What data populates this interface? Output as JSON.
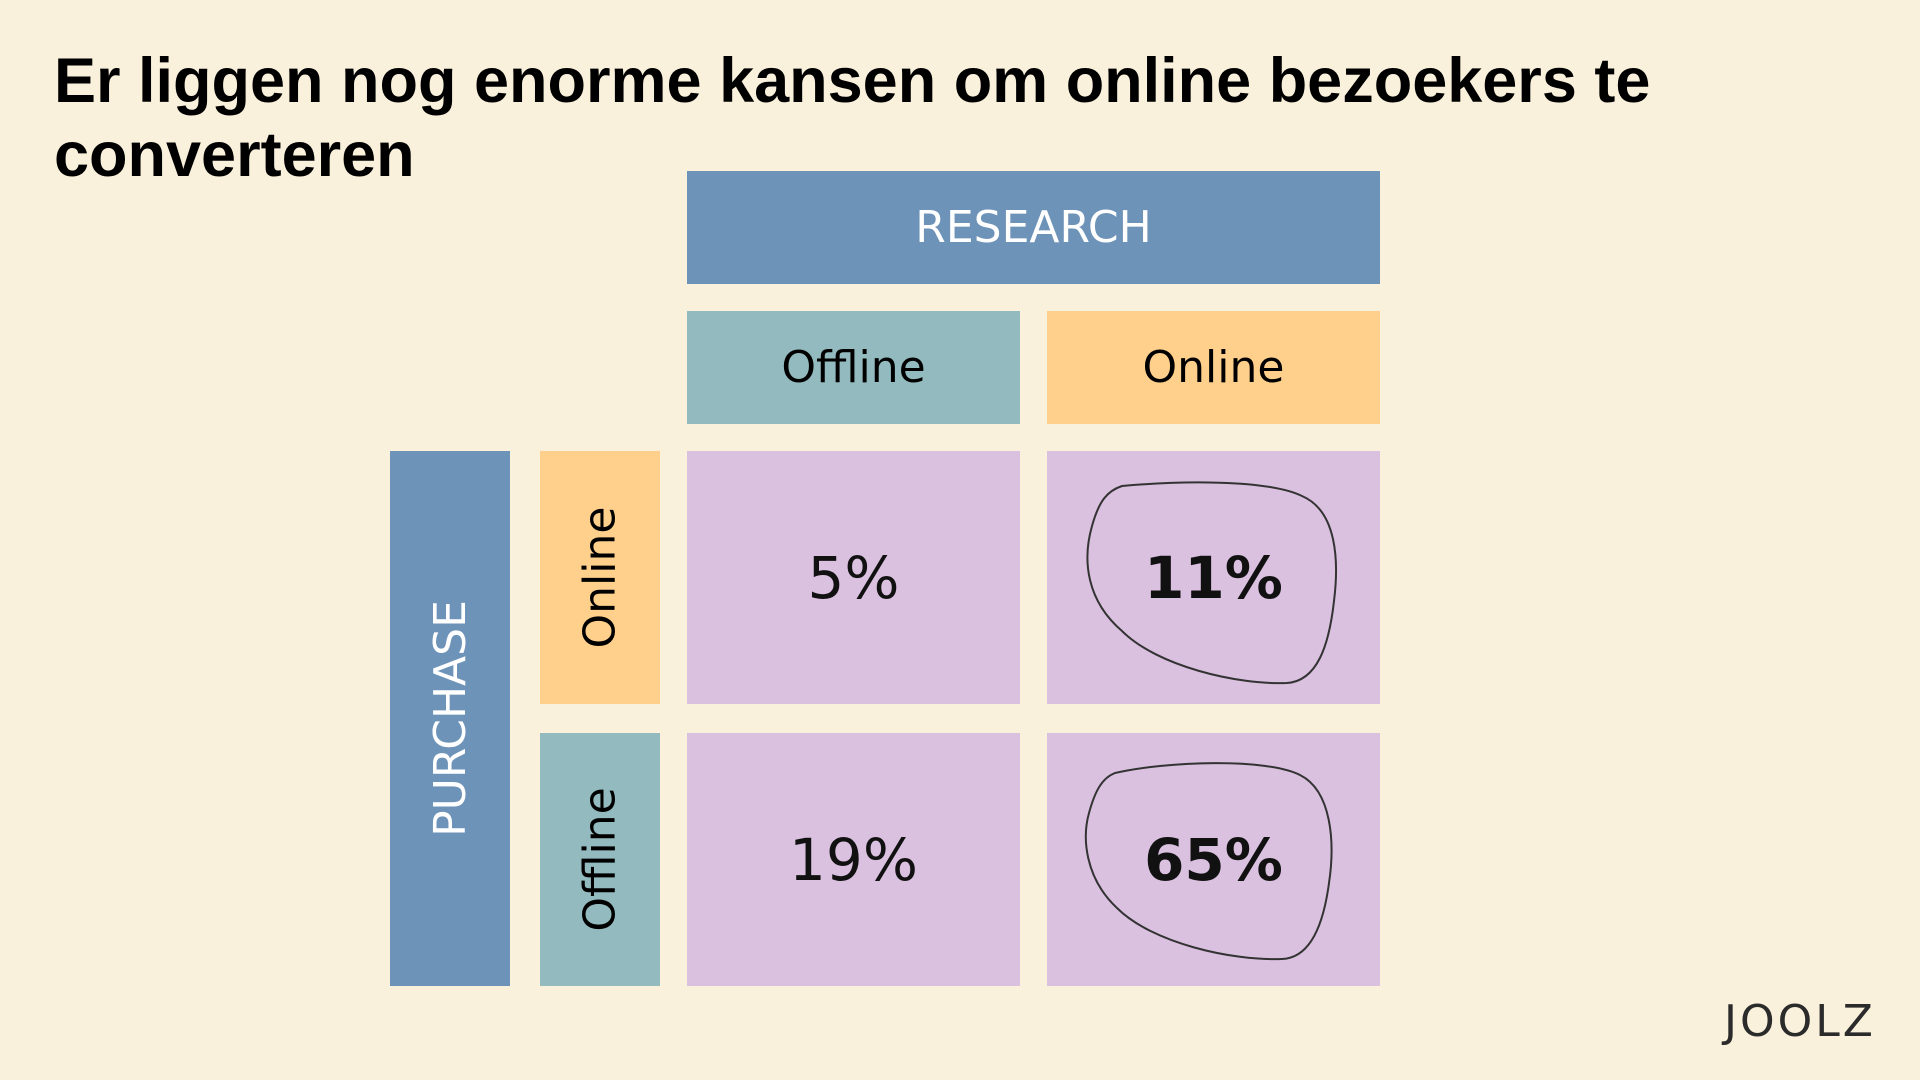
{
  "title": "Er liggen nog enorme kansen om online bezoekers te converteren",
  "matrix": {
    "column_group": "RESEARCH",
    "columns": [
      "Offline",
      "Online"
    ],
    "row_group": "PURCHASE",
    "rows": [
      "Online",
      "Offline"
    ],
    "cells": {
      "purchase_online_research_offline": "5%",
      "purchase_online_research_online": "11%",
      "purchase_offline_research_offline": "19%",
      "purchase_offline_research_online": "65%"
    },
    "highlighted_cells": [
      "purchase_online_research_online",
      "purchase_offline_research_online"
    ]
  },
  "colors": {
    "background": "#faf1dc",
    "group_header": "#6e93b8",
    "offline_header": "#93bbbf",
    "online_header": "#fed08c",
    "cell": "#dbc1e0"
  },
  "logo": "JOOLZ"
}
